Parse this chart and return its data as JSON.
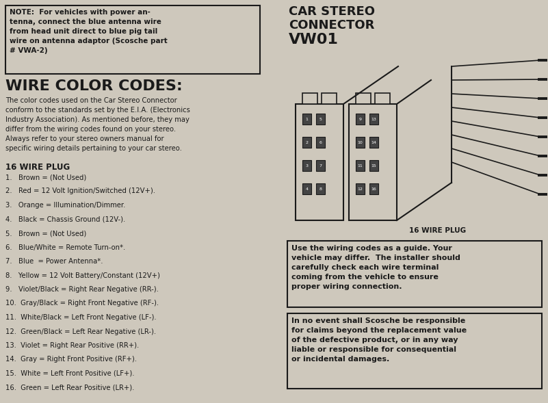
{
  "bg_color": "#cec8bc",
  "text_color": "#1a1a1a",
  "note_text": "NOTE:  For vehicles with power an-\ntenna, connect the blue antenna wire\nfrom head unit direct to blue pig tail\nwire on antenna adaptor (Scosche part\n# VWA-2)",
  "wire_color_codes_title": "WIRE COLOR CODES:",
  "wire_color_codes_body": "The color codes used on the Car Stereo Connector\nconform to the standards set by the E.I.A. (Electronics\nIndustry Association). As mentioned before, they may\ndiffer from the wiring codes found on your stereo.\nAlways refer to your stereo owners manual for\nspecific wiring details pertaining to your car stereo.",
  "plug_title": "16 WIRE PLUG",
  "wire_list": [
    "1.   Brown = (Not Used)",
    "2.   Red = 12 Volt Ignition/Switched (12V+).",
    "3.   Orange = Illumination/Dimmer.",
    "4.   Black = Chassis Ground (12V-).",
    "5.   Brown = (Not Used)",
    "6.   Blue/White = Remote Turn-on*.",
    "7.   Blue  = Power Antenna*.",
    "8.   Yellow = 12 Volt Battery/Constant (12V+)",
    "9.   Violet/Black = Right Rear Negative (RR-).",
    "10.  Gray/Black = Right Front Negative (RF-).",
    "11.  White/Black = Left Front Negative (LF-).",
    "12.  Green/Black = Left Rear Negative (LR-).",
    "13.  Violet = Right Rear Positive (RR+).",
    "14.  Gray = Right Front Positive (RF+).",
    "15.  White = Left Front Positive (LF+).",
    "16.  Green = Left Rear Positive (LR+)."
  ],
  "connector_title_line1": "CAR STEREO",
  "connector_title_line2": "CONNECTOR",
  "connector_title_line3": "VW01",
  "plug_label": "16 WIRE PLUG",
  "warning_box1": "Use the wiring codes as a guide. Your\nvehicle may differ.  The installer should\ncarefully check each wire terminal\ncoming from the vehicle to ensure\nproper wiring connection.",
  "warning_box2": "In no event shall Scosche be responsible\nfor claims beyond the replacement value\nof the defective product, or in any way\nliable or responsible for consequential\nor incidental damages.",
  "left_pins": [
    [
      "1",
      "5"
    ],
    [
      "2",
      "6"
    ],
    [
      "3",
      "7"
    ],
    [
      "4",
      "8"
    ]
  ],
  "right_pins": [
    [
      "9",
      "13"
    ],
    [
      "10",
      "14"
    ],
    [
      "11",
      "15"
    ],
    [
      "12",
      "16"
    ]
  ]
}
